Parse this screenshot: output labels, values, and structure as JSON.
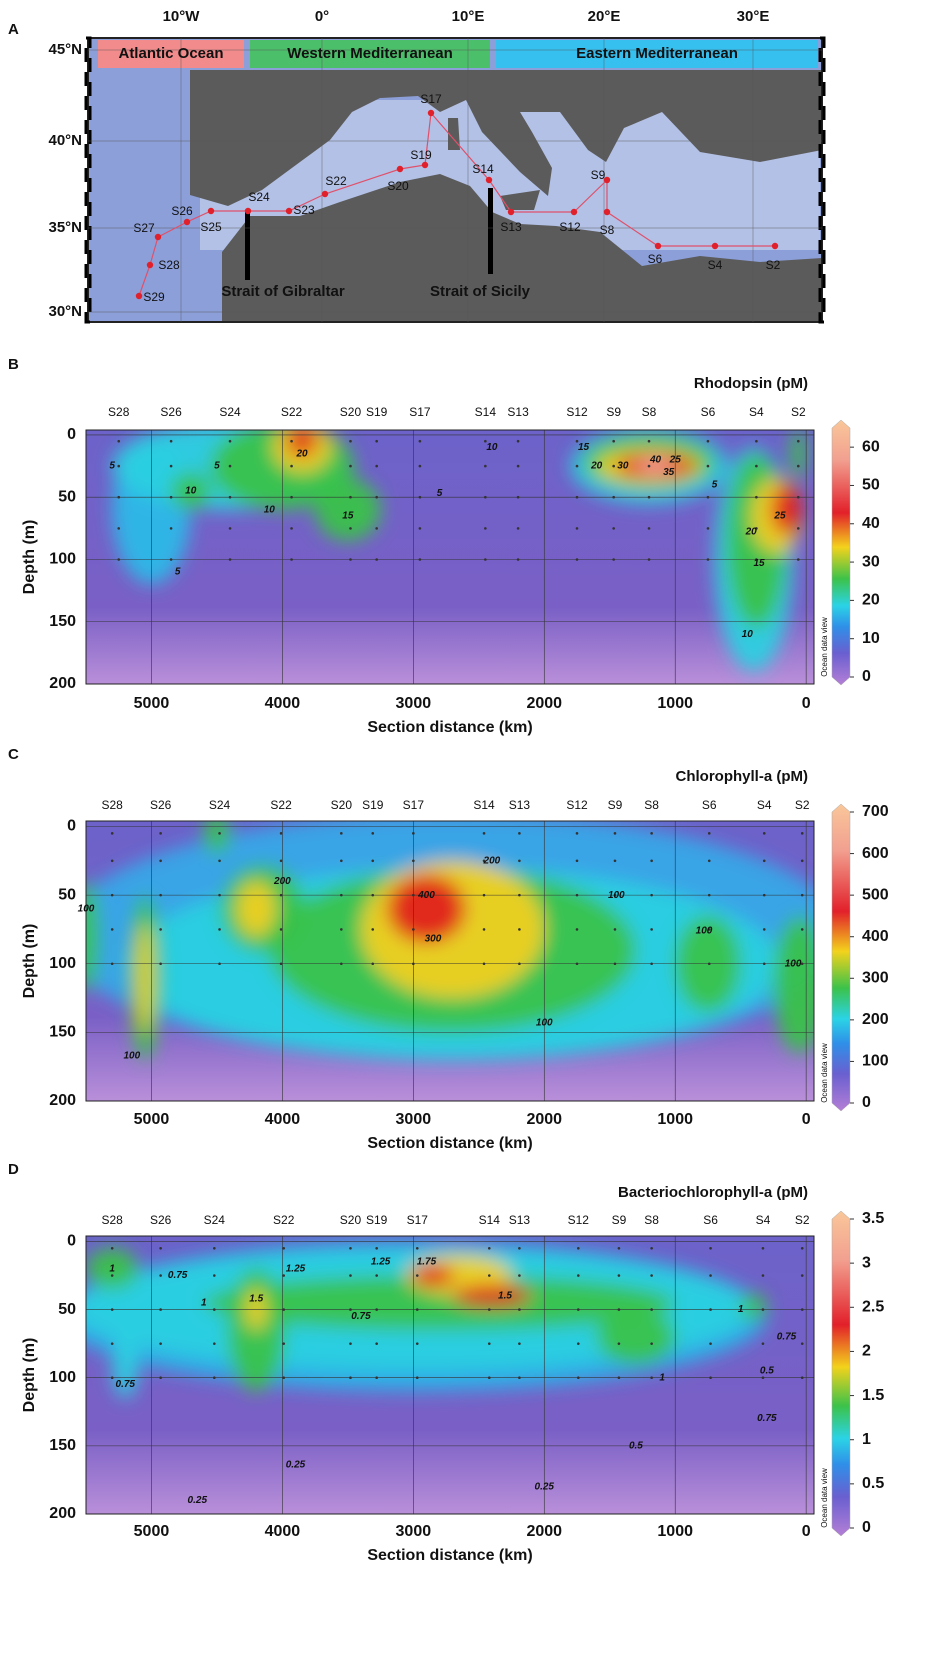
{
  "panel_a": {
    "letter": "A",
    "lon_labels": [
      "10°W",
      "0°",
      "10°E",
      "20°E",
      "30°E"
    ],
    "lat_labels": [
      "45°N",
      "40°N",
      "35°N",
      "30°N"
    ],
    "regions": [
      "Atlantic Ocean",
      "Western Mediterranean",
      "Eastern Mediterranean"
    ],
    "stations": [
      "S29",
      "S28",
      "S27",
      "S26",
      "S25",
      "S24",
      "S23",
      "S22",
      "S20",
      "S19",
      "S17",
      "S14",
      "S13",
      "S12",
      "S9",
      "S8",
      "S6",
      "S4",
      "S2"
    ],
    "straits": [
      "Strait of Gibraltar",
      "Strait of Sicily"
    ]
  },
  "panels": [
    {
      "letter": "B",
      "title": "Rhodopsin (pM)",
      "stations": [
        "S28",
        "S26",
        "S24",
        "S22",
        "S20",
        "S19",
        "S17",
        "S14",
        "S13",
        "S12",
        "S9",
        "S8",
        "S6",
        "S4",
        "S2"
      ],
      "xlabel": "Section distance (km)",
      "ylabel": "Depth (m)",
      "xlim": [
        5500,
        -60
      ],
      "xticks": [
        5000,
        4000,
        3000,
        2000,
        1000,
        0
      ],
      "ylim": [
        200,
        -4
      ],
      "yticks": [
        0,
        50,
        100,
        150,
        200
      ],
      "grid": true,
      "colorbar": {
        "lim": [
          0,
          65
        ],
        "ticks": [
          0,
          10,
          20,
          30,
          40,
          50,
          60
        ]
      },
      "contour_labels": [
        5,
        5,
        10,
        20,
        10,
        15,
        5,
        10,
        5,
        15,
        20,
        30,
        40,
        35,
        25,
        5,
        20,
        25,
        15,
        10
      ],
      "credit": "Ocean data view"
    },
    {
      "letter": "C",
      "title": "Chlorophyll-a (pM)",
      "stations": [
        "S28",
        "S26",
        "S24",
        "S22",
        "S20",
        "S19",
        "S17",
        "S14",
        "S13",
        "S12",
        "S9",
        "S8",
        "S6",
        "S4",
        "S2"
      ],
      "xlabel": "Section distance (km)",
      "ylabel": "Depth (m)",
      "xlim": [
        5500,
        -60
      ],
      "xticks": [
        5000,
        4000,
        3000,
        2000,
        1000,
        0
      ],
      "ylim": [
        200,
        -4
      ],
      "yticks": [
        0,
        50,
        100,
        150,
        200
      ],
      "grid": true,
      "colorbar": {
        "lim": [
          0,
          700
        ],
        "ticks": [
          0,
          100,
          200,
          300,
          400,
          500,
          600,
          700
        ]
      },
      "contour_labels": [
        100,
        100,
        200,
        400,
        300,
        200,
        100,
        100,
        100,
        100
      ],
      "credit": "Ocean data view"
    },
    {
      "letter": "D",
      "title": "Bacteriochlorophyll-a (pM)",
      "stations": [
        "S28",
        "S26",
        "S24",
        "S22",
        "S20",
        "S19",
        "S17",
        "S14",
        "S13",
        "S12",
        "S9",
        "S8",
        "S6",
        "S4",
        "S2"
      ],
      "xlabel": "Section distance (km)",
      "ylabel": "Depth (m)",
      "xlim": [
        5500,
        -60
      ],
      "xticks": [
        5000,
        4000,
        3000,
        2000,
        1000,
        0
      ],
      "ylim": [
        200,
        -4
      ],
      "yticks": [
        0,
        50,
        100,
        150,
        200
      ],
      "grid": true,
      "colorbar": {
        "lim": [
          0,
          3.5
        ],
        "ticks": [
          0,
          0.5,
          1,
          1.5,
          2,
          2.5,
          3,
          3.5
        ]
      },
      "contour_labels": [
        1,
        0.75,
        1,
        1.5,
        1.25,
        1.25,
        1.75,
        1.5,
        0.75,
        0.75,
        1,
        0.25,
        1,
        0.75,
        0.5,
        0.75,
        0.5,
        0.25,
        0.25
      ],
      "credit": "Ocean data view"
    }
  ]
}
